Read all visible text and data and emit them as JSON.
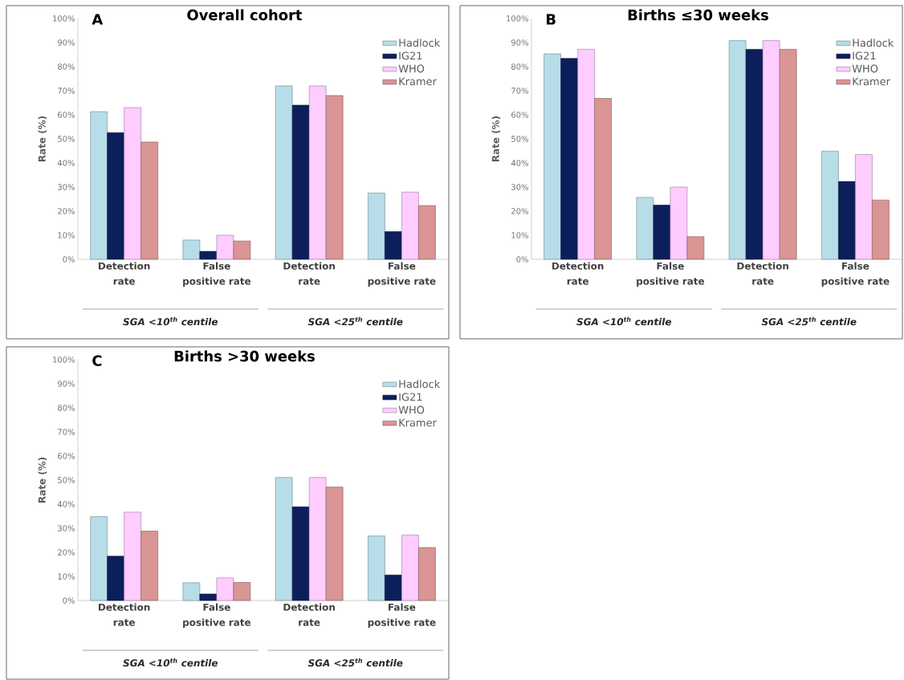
{
  "chart_data": [
    {
      "type": "bar",
      "title": "Overall cohort",
      "ylabel": "Rate (%)",
      "categories": [
        "Detection rate",
        "False positive rate",
        "Detection rate",
        "False positive rate"
      ],
      "series": [
        {
          "name": "Hadlock",
          "color": "#b7dee8",
          "values": [
            61.3,
            8,
            72,
            27.5
          ]
        },
        {
          "name": "IG21",
          "color": "#0c1f5b",
          "values": [
            52.6,
            3.3,
            64,
            11.5
          ]
        },
        {
          "name": "WHO",
          "color": "#ffccff",
          "values": [
            63,
            10,
            72,
            27.9
          ]
        },
        {
          "name": "Kramer",
          "color": "#d99594",
          "values": [
            48.7,
            7.6,
            68,
            22.3
          ]
        }
      ],
      "ylim": [
        0,
        100
      ],
      "yticks": [
        {
          "value": 0,
          "label": "0%"
        },
        {
          "value": 10,
          "label": "10%"
        },
        {
          "value": 20,
          "label": "20%"
        },
        {
          "value": 30,
          "label": "30%"
        },
        {
          "value": 40,
          "label": "40%"
        },
        {
          "value": 50,
          "label": "50%"
        },
        {
          "value": 60,
          "label": "60%"
        },
        {
          "value": 70,
          "label": "70%"
        },
        {
          "value": 80,
          "label": "80%"
        },
        {
          "value": 90,
          "label": "90%"
        },
        {
          "value": 100,
          "label": "100%"
        }
      ],
      "legend": "top right",
      "annotations": [
        "A",
        "SGA <10$^{th}$ centile",
        "SGA <25$^{th}$ centile"
      ]
    },
    {
      "type": "bar",
      "title": "Births ≤30 weeks",
      "ylabel": "Rate (%)",
      "categories": [
        "Detection rate",
        "False positive rate",
        "Detection rate",
        "False positive rate"
      ],
      "series": [
        {
          "name": "Hadlock",
          "color": "#b7dee8",
          "values": [
            85.3,
            25.7,
            90.8,
            44.9
          ]
        },
        {
          "name": "IG21",
          "color": "#0c1f5b",
          "values": [
            83.4,
            22.5,
            87.2,
            32.3
          ]
        },
        {
          "name": "WHO",
          "color": "#ffccff",
          "values": [
            87.2,
            30,
            90.8,
            43.5
          ]
        },
        {
          "name": "Kramer",
          "color": "#d99594",
          "values": [
            66.8,
            9.4,
            87.2,
            24.6
          ]
        }
      ],
      "ylim": [
        0,
        100
      ],
      "yticks": [
        {
          "value": 0,
          "label": "0%"
        },
        {
          "value": 10,
          "label": "10%"
        },
        {
          "value": 20,
          "label": "20%"
        },
        {
          "value": 30,
          "label": "30%"
        },
        {
          "value": 40,
          "label": "40%"
        },
        {
          "value": 50,
          "label": "50%"
        },
        {
          "value": 60,
          "label": "60%"
        },
        {
          "value": 70,
          "label": "70%"
        },
        {
          "value": 80,
          "label": "80%"
        },
        {
          "value": 90,
          "label": "90%"
        },
        {
          "value": 100,
          "label": "100%"
        }
      ],
      "legend": "top right",
      "annotations": [
        "B",
        "SGA <10$^{th}$ centile",
        "SGA <25$^{th}$ centile"
      ]
    },
    {
      "type": "bar",
      "title": "Births >30 weeks",
      "ylabel": "Rate (%)",
      "categories": [
        "Detection rate",
        "False positive rate",
        "Detection rate",
        "False positive rate"
      ],
      "series": [
        {
          "name": "Hadlock",
          "color": "#b7dee8",
          "values": [
            34.8,
            7.4,
            51.1,
            26.8
          ]
        },
        {
          "name": "IG21",
          "color": "#0c1f5b",
          "values": [
            18.4,
            2.7,
            38.9,
            10.6
          ]
        },
        {
          "name": "WHO",
          "color": "#ffccff",
          "values": [
            36.7,
            9.4,
            51.1,
            27.2
          ]
        },
        {
          "name": "Kramer",
          "color": "#d99594",
          "values": [
            28.8,
            7.5,
            47.1,
            22
          ]
        }
      ],
      "ylim": [
        0,
        100
      ],
      "yticks": [
        {
          "value": 0,
          "label": "0%"
        },
        {
          "value": 10,
          "label": "10%"
        },
        {
          "value": 20,
          "label": "20%"
        },
        {
          "value": 30,
          "label": "30%"
        },
        {
          "value": 40,
          "label": "40%"
        },
        {
          "value": 50,
          "label": "50%"
        },
        {
          "value": 60,
          "label": "60%"
        },
        {
          "value": 70,
          "label": "70%"
        },
        {
          "value": 80,
          "label": "80%"
        },
        {
          "value": 90,
          "label": "90%"
        },
        {
          "value": 100,
          "label": "100%"
        }
      ],
      "legend": "top right",
      "annotations": [
        "C",
        "SGA <10$^{th}$ centile",
        "SGA <25$^{th}$ centile"
      ]
    }
  ]
}
